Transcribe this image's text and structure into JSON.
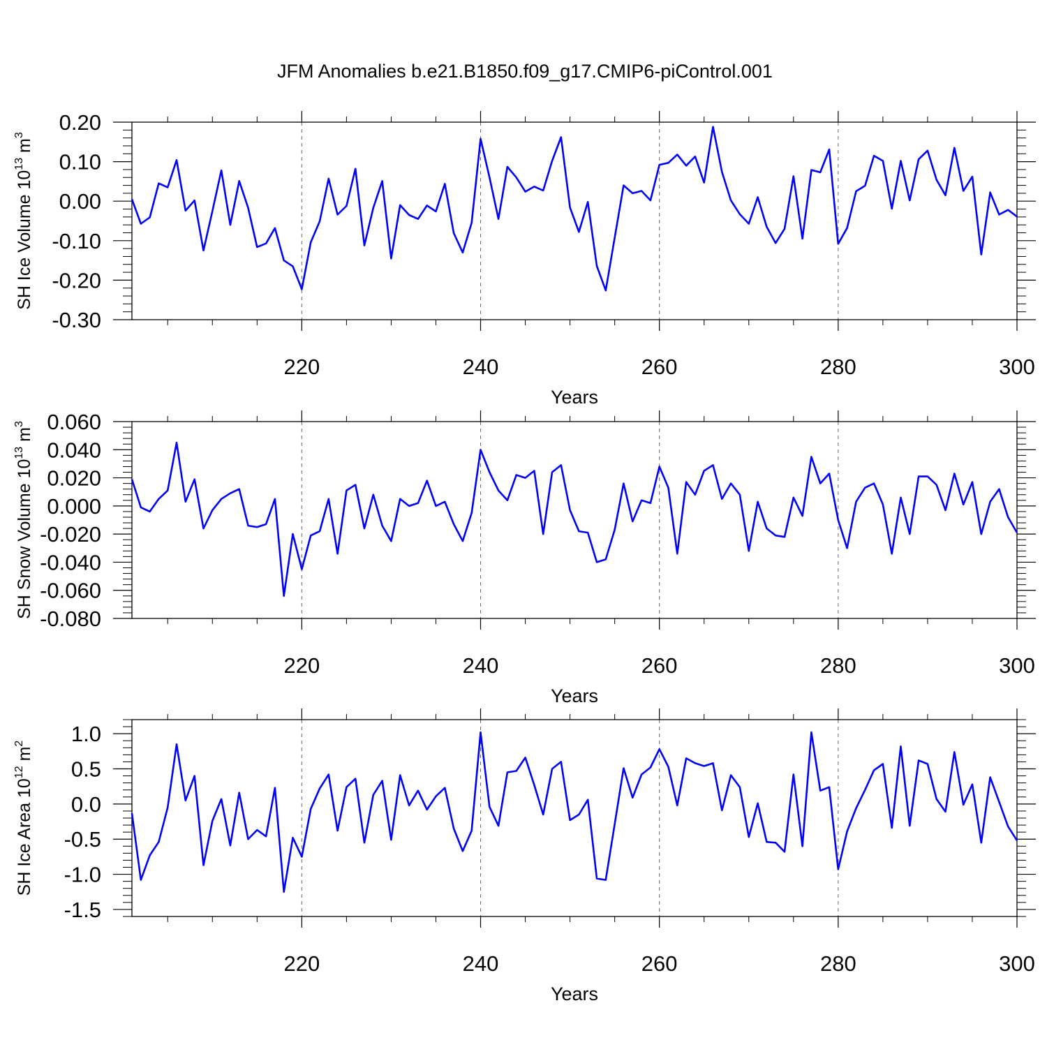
{
  "title": "JFM Anomalies b.e21.B1850.f09_g17.CMIP6-piControl.001",
  "colors": {
    "line": "#0000ff",
    "axis": "#000000",
    "grid": "#666666"
  },
  "chart_data": [
    {
      "type": "line",
      "ylabel_parts": [
        "SH Ice Volume 10",
        "13",
        " m",
        "3"
      ],
      "xlabel": "Years",
      "xlim": [
        201,
        300
      ],
      "ylim": [
        -0.3,
        0.2
      ],
      "yticks": [
        -0.3,
        -0.2,
        -0.1,
        0.0,
        0.1,
        0.2
      ],
      "yticklabels": [
        "-0.30",
        "-0.20",
        "-0.10",
        "0.00",
        "0.10",
        "0.20"
      ],
      "xticks": [
        220,
        240,
        260,
        280,
        300
      ],
      "xticklabels": [
        "220",
        "240",
        "260",
        "280",
        "300"
      ],
      "x_start": 201,
      "values": [
        0.005,
        -0.057,
        -0.041,
        0.045,
        0.035,
        0.104,
        -0.024,
        0.002,
        -0.125,
        -0.025,
        0.078,
        -0.06,
        0.051,
        -0.017,
        -0.116,
        -0.107,
        -0.068,
        -0.15,
        -0.165,
        -0.223,
        -0.104,
        -0.051,
        0.057,
        -0.034,
        -0.012,
        0.082,
        -0.112,
        -0.017,
        0.051,
        -0.145,
        -0.01,
        -0.035,
        -0.045,
        -0.011,
        -0.026,
        0.044,
        -0.081,
        -0.13,
        -0.055,
        0.158,
        0.06,
        -0.045,
        0.087,
        0.06,
        0.024,
        0.037,
        0.027,
        0.102,
        0.162,
        -0.016,
        -0.078,
        -0.002,
        -0.164,
        -0.226,
        -0.093,
        0.04,
        0.02,
        0.026,
        0.002,
        0.092,
        0.097,
        0.118,
        0.09,
        0.113,
        0.047,
        0.188,
        0.074,
        0.002,
        -0.033,
        -0.057,
        0.01,
        -0.065,
        -0.106,
        -0.07,
        0.063,
        -0.095,
        0.079,
        0.073,
        0.131,
        -0.108,
        -0.068,
        0.025,
        0.039,
        0.115,
        0.102,
        -0.019,
        0.102,
        0.002,
        0.106,
        0.128,
        0.054,
        0.015,
        0.135,
        0.026,
        0.062,
        -0.135,
        0.022,
        -0.034,
        -0.022,
        -0.039
      ]
    },
    {
      "type": "line",
      "ylabel_parts": [
        "SH Snow Volume 10",
        "13",
        " m",
        "3"
      ],
      "xlabel": "Years",
      "xlim": [
        201,
        300
      ],
      "ylim": [
        -0.08,
        0.06
      ],
      "yticks": [
        -0.08,
        -0.06,
        -0.04,
        -0.02,
        0.0,
        0.02,
        0.04,
        0.06
      ],
      "yticklabels": [
        "-0.080",
        "-0.060",
        "-0.040",
        "-0.020",
        "0.000",
        "0.020",
        "0.040",
        "0.060"
      ],
      "xticks": [
        220,
        240,
        260,
        280,
        300
      ],
      "xticklabels": [
        "220",
        "240",
        "260",
        "280",
        "300"
      ],
      "x_start": 201,
      "values": [
        0.019,
        -0.001,
        -0.004,
        0.005,
        0.011,
        0.045,
        0.003,
        0.019,
        -0.016,
        -0.003,
        0.005,
        0.009,
        0.012,
        -0.014,
        -0.015,
        -0.013,
        0.005,
        -0.064,
        -0.02,
        -0.045,
        -0.021,
        -0.018,
        0.005,
        -0.034,
        0.011,
        0.015,
        -0.016,
        0.008,
        -0.014,
        -0.025,
        0.005,
        0.0,
        0.002,
        0.018,
        0.0,
        0.003,
        -0.013,
        -0.025,
        -0.005,
        0.04,
        0.024,
        0.011,
        0.004,
        0.022,
        0.02,
        0.025,
        -0.02,
        0.024,
        0.029,
        -0.003,
        -0.018,
        -0.019,
        -0.04,
        -0.038,
        -0.017,
        0.016,
        -0.011,
        0.004,
        0.002,
        0.028,
        0.013,
        -0.034,
        0.017,
        0.008,
        0.025,
        0.029,
        0.005,
        0.016,
        0.008,
        -0.032,
        0.003,
        -0.016,
        -0.021,
        -0.022,
        0.006,
        -0.007,
        0.035,
        0.016,
        0.023,
        -0.01,
        -0.03,
        0.003,
        0.013,
        0.016,
        0.001,
        -0.034,
        0.006,
        -0.02,
        0.021,
        0.021,
        0.015,
        -0.003,
        0.023,
        0.001,
        0.017,
        -0.02,
        0.003,
        0.012,
        -0.008,
        -0.019
      ]
    },
    {
      "type": "line",
      "ylabel_parts": [
        "SH Ice Area 10",
        "12",
        " m",
        "2"
      ],
      "xlabel": "Years",
      "xlim": [
        201,
        300
      ],
      "ylim": [
        -1.6,
        1.2
      ],
      "yticks": [
        -1.5,
        -1.0,
        -0.5,
        0.0,
        0.5,
        1.0
      ],
      "yticklabels": [
        "-1.5",
        "-1.0",
        "-0.5",
        "0.0",
        "0.5",
        "1.0"
      ],
      "xticks": [
        220,
        240,
        260,
        280,
        300
      ],
      "xticklabels": [
        "220",
        "240",
        "260",
        "280",
        "300"
      ],
      "x_start": 201,
      "values": [
        -0.13,
        -1.08,
        -0.73,
        -0.54,
        -0.05,
        0.85,
        0.05,
        0.4,
        -0.87,
        -0.24,
        0.07,
        -0.59,
        0.16,
        -0.5,
        -0.37,
        -0.46,
        0.23,
        -1.25,
        -0.48,
        -0.75,
        -0.07,
        0.22,
        0.42,
        -0.38,
        0.24,
        0.36,
        -0.55,
        0.13,
        0.33,
        -0.51,
        0.41,
        -0.02,
        0.19,
        -0.08,
        0.11,
        0.23,
        -0.35,
        -0.67,
        -0.38,
        1.02,
        -0.04,
        -0.31,
        0.45,
        0.47,
        0.66,
        0.27,
        -0.15,
        0.5,
        0.6,
        -0.23,
        -0.15,
        0.06,
        -1.06,
        -1.08,
        -0.29,
        0.51,
        0.09,
        0.42,
        0.52,
        0.78,
        0.53,
        -0.02,
        0.65,
        0.58,
        0.54,
        0.58,
        -0.09,
        0.41,
        0.24,
        -0.47,
        0.01,
        -0.54,
        -0.55,
        -0.68,
        0.42,
        -0.6,
        1.02,
        0.19,
        0.24,
        -0.93,
        -0.39,
        -0.06,
        0.2,
        0.48,
        0.57,
        -0.34,
        0.82,
        -0.31,
        0.62,
        0.57,
        0.07,
        -0.11,
        0.74,
        -0.01,
        0.28,
        -0.55,
        0.38,
        0.03,
        -0.32,
        -0.52
      ]
    }
  ]
}
